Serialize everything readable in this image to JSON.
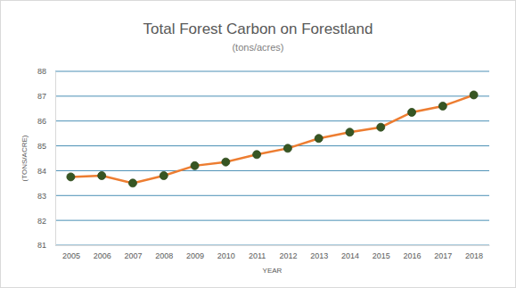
{
  "chart_data": {
    "type": "line",
    "title": "Total Forest Carbon on Forestland",
    "subtitle": "(tons/acres)",
    "x_label": "YEAR",
    "y_label": "(TONS/ACRE)",
    "categories": [
      "2005",
      "2006",
      "2007",
      "2008",
      "2009",
      "2010",
      "2011",
      "2012",
      "2013",
      "2014",
      "2015",
      "2016",
      "2017",
      "2018"
    ],
    "series": [
      {
        "name": "Total Forest Carbon",
        "color": "#ed7d31",
        "marker": "circle",
        "values": [
          83.75,
          83.8,
          83.5,
          83.8,
          84.2,
          84.35,
          84.65,
          84.9,
          85.3,
          85.55,
          85.75,
          86.35,
          86.6,
          87.05
        ]
      }
    ],
    "ylim": [
      81,
      88
    ],
    "yticks": [
      81,
      82,
      83,
      84,
      85,
      86,
      87,
      88
    ],
    "grid": true
  }
}
